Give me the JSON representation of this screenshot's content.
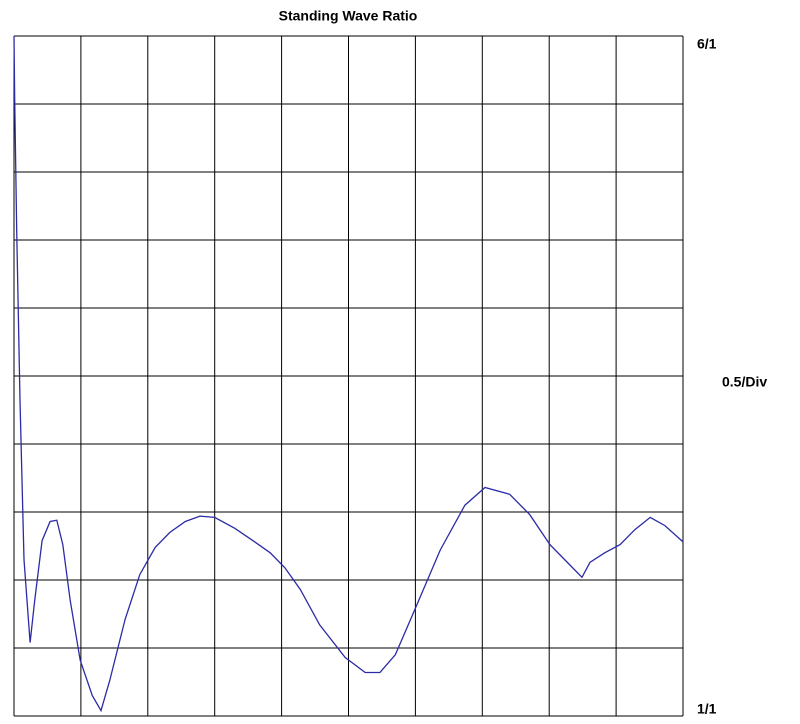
{
  "chart_data": {
    "type": "line",
    "title": "Standing Wave Ratio",
    "x": [
      0,
      0.01,
      0.04,
      0.09,
      0.15,
      0.24,
      0.31,
      0.42,
      0.54,
      0.64,
      0.73,
      0.84,
      0.99,
      1.17,
      1.3,
      1.43,
      1.66,
      1.88,
      2.11,
      2.33,
      2.56,
      2.78,
      3.0,
      3.3,
      3.6,
      3.83,
      4.05,
      4.28,
      4.57,
      4.95,
      5.25,
      5.47,
      5.7,
      5.99,
      6.37,
      6.74,
      7.04,
      7.41,
      7.71,
      8.01,
      8.31,
      8.49,
      8.61,
      8.83,
      9.06,
      9.28,
      9.51,
      9.73,
      10.0
    ],
    "values": [
      6.0,
      5.53,
      4.57,
      3.32,
      2.15,
      1.54,
      1.85,
      2.29,
      2.43,
      2.44,
      2.26,
      1.85,
      1.41,
      1.15,
      1.04,
      1.26,
      1.71,
      2.04,
      2.24,
      2.35,
      2.43,
      2.47,
      2.46,
      2.38,
      2.28,
      2.2,
      2.09,
      1.93,
      1.67,
      1.43,
      1.32,
      1.32,
      1.45,
      1.78,
      2.22,
      2.55,
      2.68,
      2.63,
      2.48,
      2.26,
      2.11,
      2.02,
      2.13,
      2.2,
      2.26,
      2.37,
      2.46,
      2.4,
      2.28
    ],
    "color": "#2b2ba6",
    "xlim": [
      0,
      10
    ],
    "ylim": [
      1,
      6
    ],
    "yticks": [
      {
        "value": 1,
        "label": "1/1"
      },
      {
        "value": 6,
        "label": "6/1"
      }
    ],
    "y_division": {
      "value": 0.5,
      "label": "0.5/Div"
    },
    "grid": {
      "columns": 10,
      "rows": 10
    }
  }
}
